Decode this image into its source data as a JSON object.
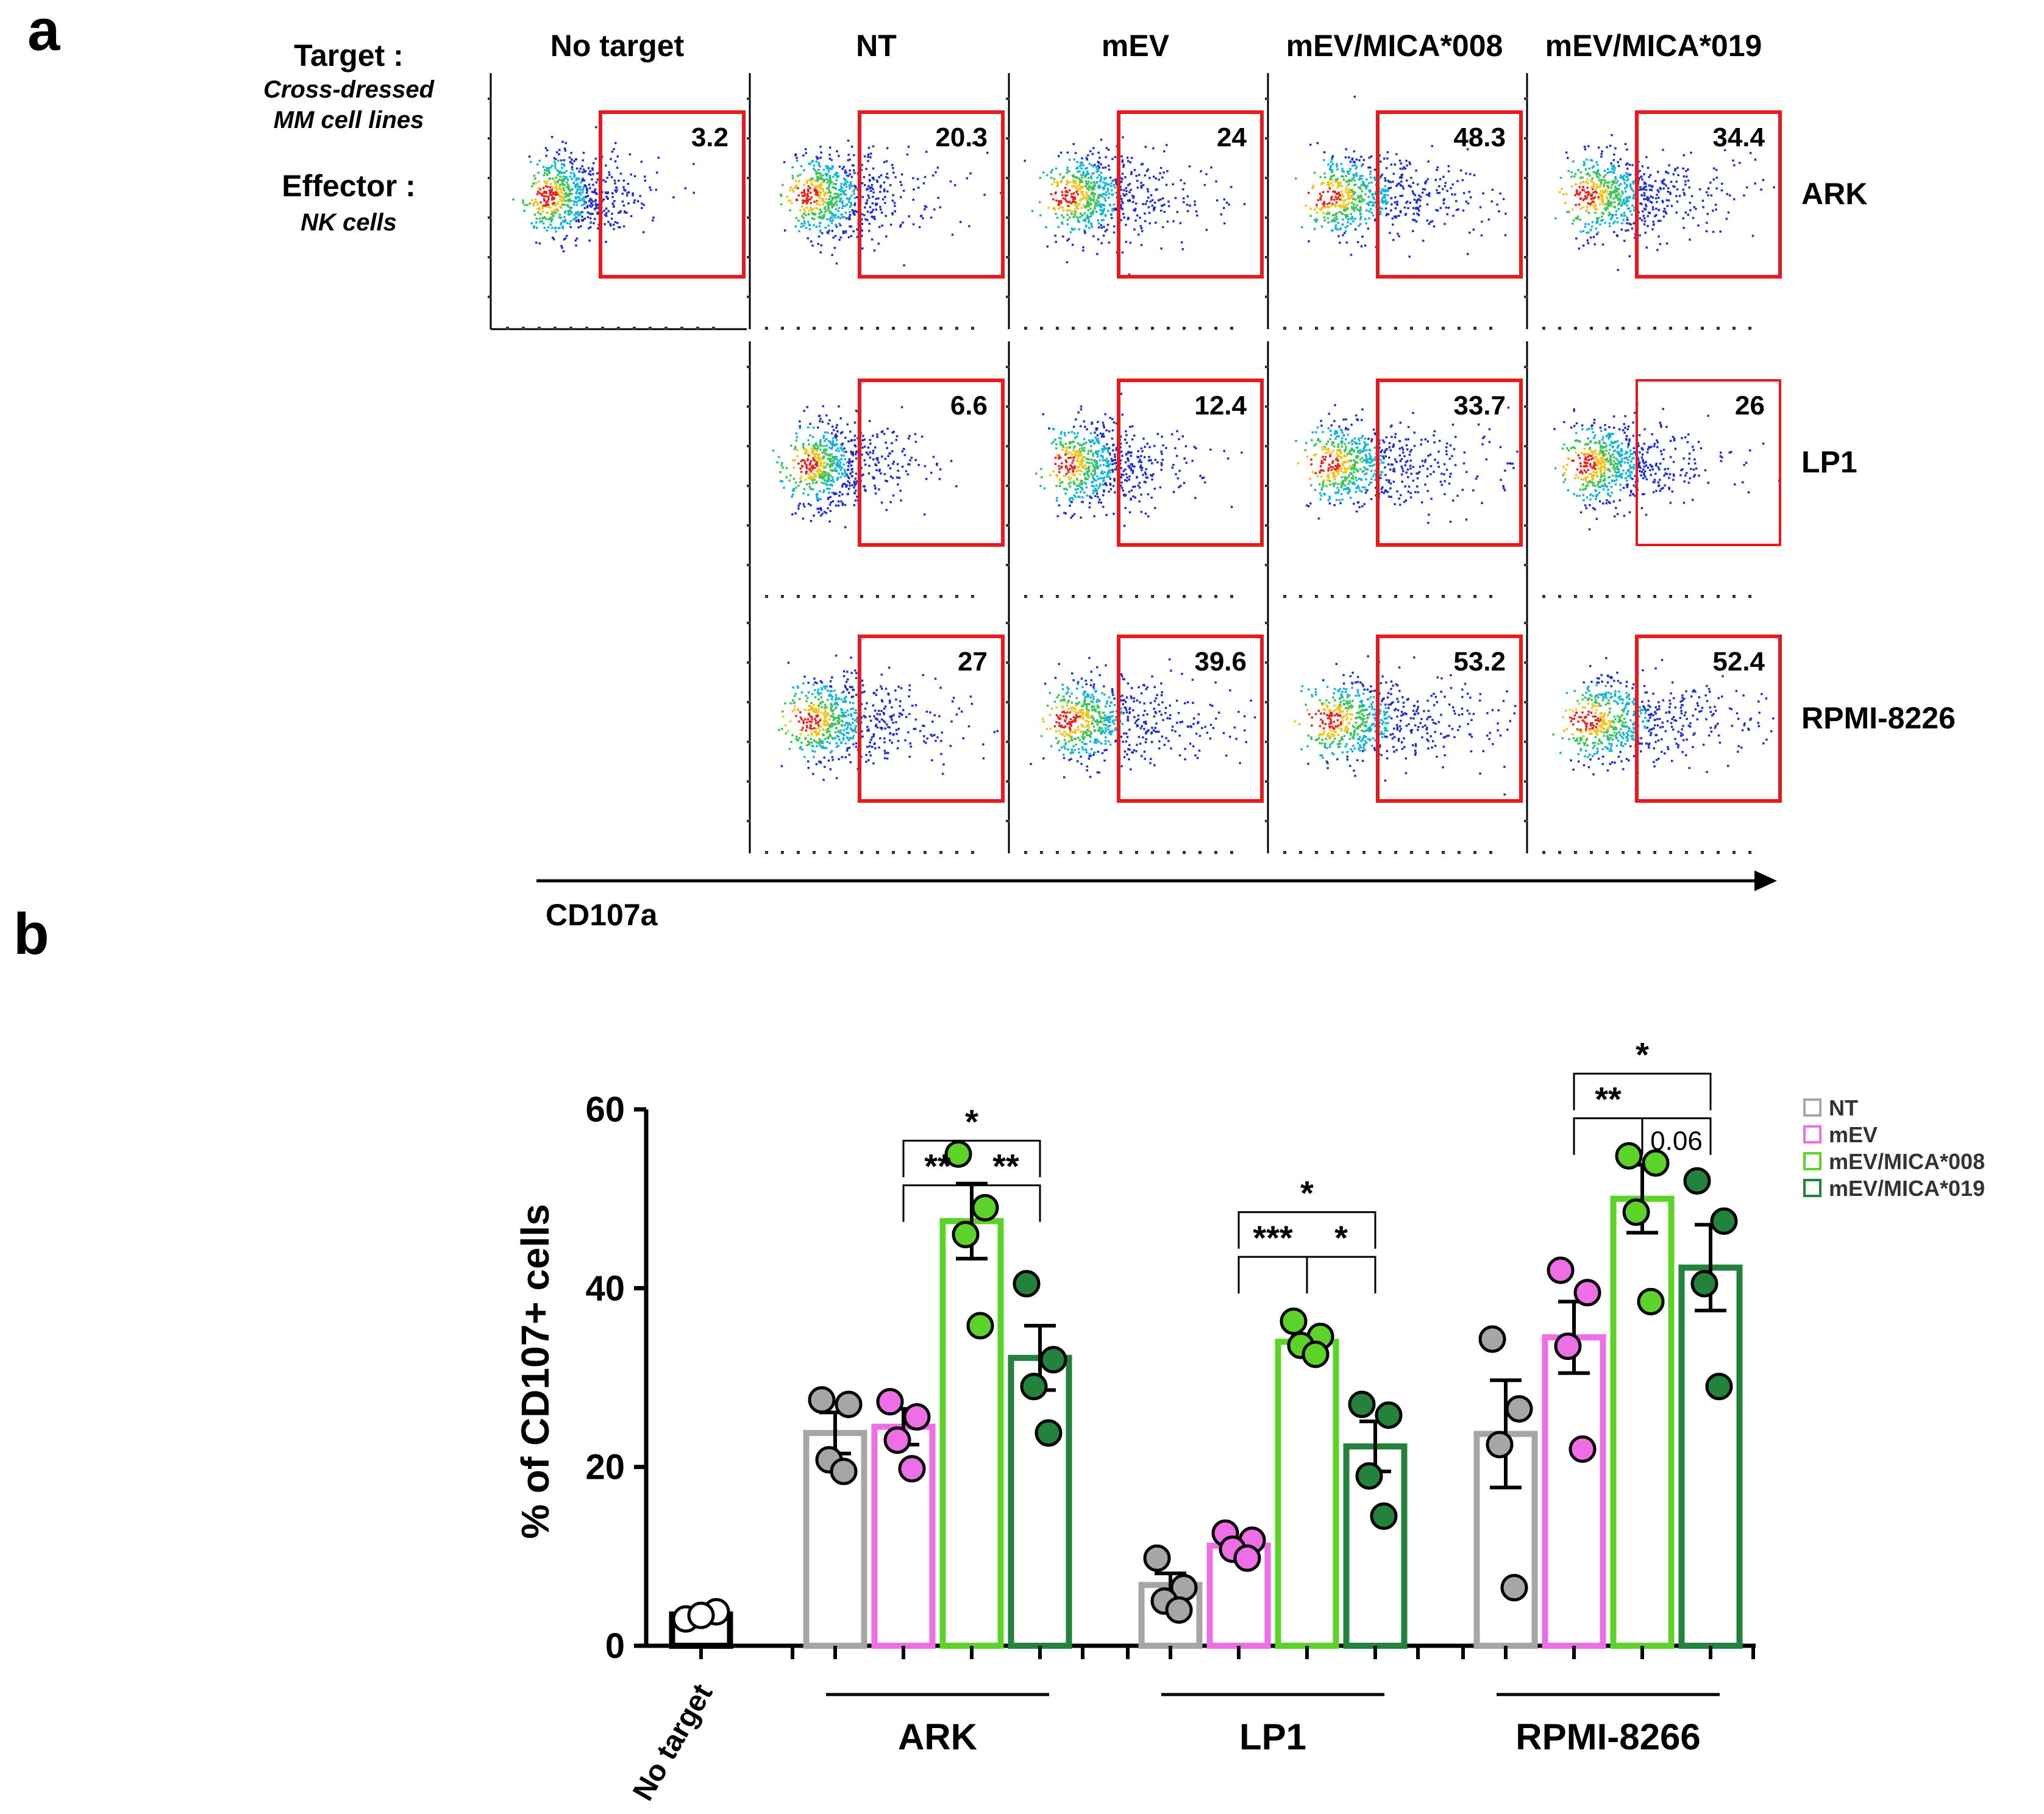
{
  "panel_a": {
    "label": "a",
    "target_label": "Target :",
    "target_sub1": "Cross-dressed",
    "target_sub2": "MM cell lines",
    "effector_label": "Effector :",
    "effector_sub": "NK cells",
    "columns": [
      "No target",
      "NT",
      "mEV",
      "mEV/MICA*008",
      "mEV/MICA*019"
    ],
    "rows": [
      "ARK",
      "LP1",
      "RPMI-8226"
    ],
    "xlabel": "CD107a",
    "gate_color": "#e8191f",
    "plots": [
      {
        "row": 0,
        "col": 0,
        "pct": "3.2",
        "spread": 0.35
      },
      {
        "row": 0,
        "col": 1,
        "pct": "20.3",
        "spread": 0.55
      },
      {
        "row": 0,
        "col": 2,
        "pct": "24",
        "spread": 0.6
      },
      {
        "row": 0,
        "col": 3,
        "pct": "48.3",
        "spread": 0.85
      },
      {
        "row": 0,
        "col": 4,
        "pct": "34.4",
        "spread": 0.7
      },
      {
        "row": 1,
        "col": 1,
        "pct": "6.6",
        "spread": 0.4
      },
      {
        "row": 1,
        "col": 2,
        "pct": "12.4",
        "spread": 0.5
      },
      {
        "row": 1,
        "col": 3,
        "pct": "33.7",
        "spread": 0.75
      },
      {
        "row": 1,
        "col": 4,
        "pct": "26",
        "spread": 0.6
      },
      {
        "row": 2,
        "col": 1,
        "pct": "27",
        "spread": 0.65
      },
      {
        "row": 2,
        "col": 2,
        "pct": "39.6",
        "spread": 0.75
      },
      {
        "row": 2,
        "col": 3,
        "pct": "53.2",
        "spread": 0.9
      },
      {
        "row": 2,
        "col": 4,
        "pct": "52.4",
        "spread": 0.85
      }
    ]
  },
  "panel_b": {
    "label": "b",
    "chart_data": {
      "type": "bar",
      "ylabel": "% of CD107+ cells",
      "ylim": [
        0,
        60
      ],
      "yticks": [
        0,
        20,
        40,
        60
      ],
      "no_target": {
        "label": "No target",
        "mean": 3.5,
        "sem": 0.5,
        "points": [
          3.0,
          3.8,
          3.4
        ]
      },
      "groups": [
        "ARK",
        "LP1",
        "RPMI-8266"
      ],
      "series": [
        {
          "name": "NT",
          "color": "#a6a6a6",
          "means": [
            23.8,
            6.8,
            23.7
          ],
          "sems": [
            2.3,
            1.3,
            6.0
          ],
          "points": [
            [
              27.5,
              27.0,
              20.8,
              19.5
            ],
            [
              9.8,
              6.5,
              5.0,
              4.0
            ],
            [
              34.3,
              26.5,
              22.5,
              6.5
            ]
          ]
        },
        {
          "name": "mEV",
          "color": "#ee6ee6",
          "means": [
            24.5,
            11.2,
            34.5
          ],
          "sems": [
            2.0,
            0.8,
            4.0
          ],
          "points": [
            [
              27.3,
              25.6,
              23.0,
              19.8
            ],
            [
              12.6,
              11.8,
              10.8,
              9.8
            ],
            [
              42.0,
              39.5,
              33.5,
              22.0
            ]
          ]
        },
        {
          "name": "mEV/MICA*008",
          "color": "#5dd329",
          "means": [
            47.5,
            34.0,
            50.0
          ],
          "sems": [
            4.2,
            0.6,
            3.8
          ],
          "points": [
            [
              55.0,
              49.0,
              46.0,
              35.8
            ],
            [
              36.3,
              34.6,
              33.6,
              32.6
            ],
            [
              54.8,
              54.0,
              48.5,
              38.5
            ]
          ]
        },
        {
          "name": "mEV/MICA*019",
          "color": "#23823b",
          "means": [
            32.2,
            22.3,
            42.3
          ],
          "sems": [
            3.6,
            2.8,
            4.8
          ],
          "points": [
            [
              40.5,
              32.0,
              29.0,
              23.8
            ],
            [
              27.0,
              25.8,
              19.0,
              14.5
            ],
            [
              52.0,
              47.5,
              40.5,
              29.0
            ]
          ]
        }
      ],
      "significance": [
        {
          "group": 0,
          "from": 2,
          "to": 3,
          "y": 51.5,
          "label": "**"
        },
        {
          "group": 0,
          "from": 3,
          "to": 4,
          "y": 51.5,
          "label": "**"
        },
        {
          "group": 0,
          "from": 2,
          "to": 4,
          "y": 56.5,
          "label": "*"
        },
        {
          "group": 1,
          "from": 2,
          "to": 3,
          "y": 43.5,
          "label": "***"
        },
        {
          "group": 1,
          "from": 3,
          "to": 4,
          "y": 43.5,
          "label": "*"
        },
        {
          "group": 1,
          "from": 2,
          "to": 4,
          "y": 48.5,
          "label": "*"
        },
        {
          "group": 2,
          "from": 2,
          "to": 3,
          "y": 59.0,
          "label": "**"
        },
        {
          "group": 2,
          "from": 3,
          "to": 4,
          "y": 59.0,
          "label": "0.06"
        },
        {
          "group": 2,
          "from": 2,
          "to": 4,
          "y": 64.0,
          "label": "*"
        }
      ],
      "legend_position": "right"
    }
  }
}
